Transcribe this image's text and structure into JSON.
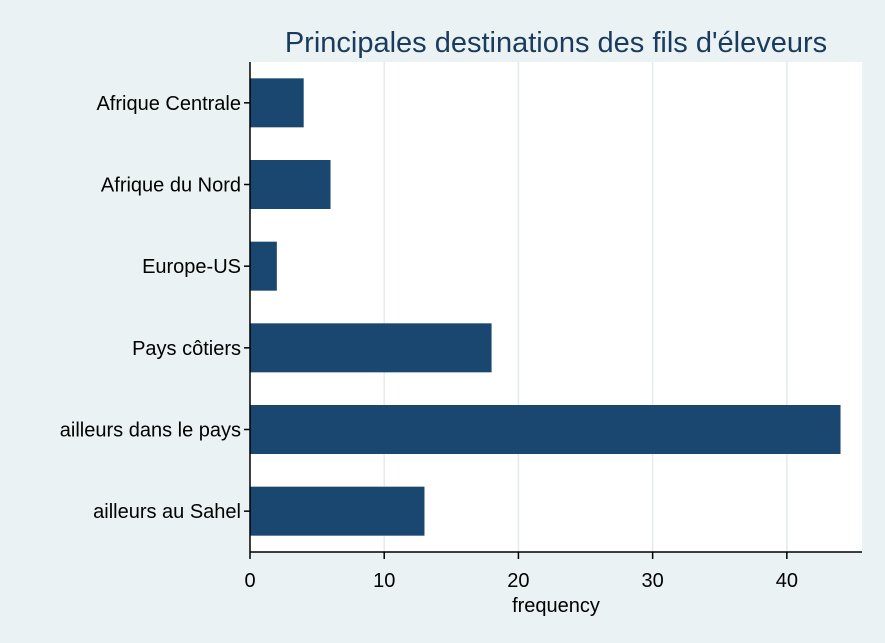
{
  "chart_data": {
    "type": "bar",
    "orientation": "horizontal",
    "title": "Principales destinations des fils d'éleveurs",
    "xlabel": "frequency",
    "ylabel": "",
    "categories": [
      "Afrique Centrale",
      "Afrique du Nord",
      "Europe-US",
      "Pays côtiers",
      "ailleurs dans le pays",
      "ailleurs au Sahel"
    ],
    "values": [
      4,
      6,
      2,
      18,
      44,
      13
    ],
    "xlim": [
      0,
      45.6
    ],
    "xticks": [
      0,
      10,
      20,
      30,
      40
    ],
    "grid": true,
    "legend": "none",
    "colors": {
      "bar": "#1a476f",
      "background": "#eaf2f3",
      "plot_background": "#ffffff",
      "grid": "#e3ebec",
      "title": "#1a3b5d"
    }
  }
}
